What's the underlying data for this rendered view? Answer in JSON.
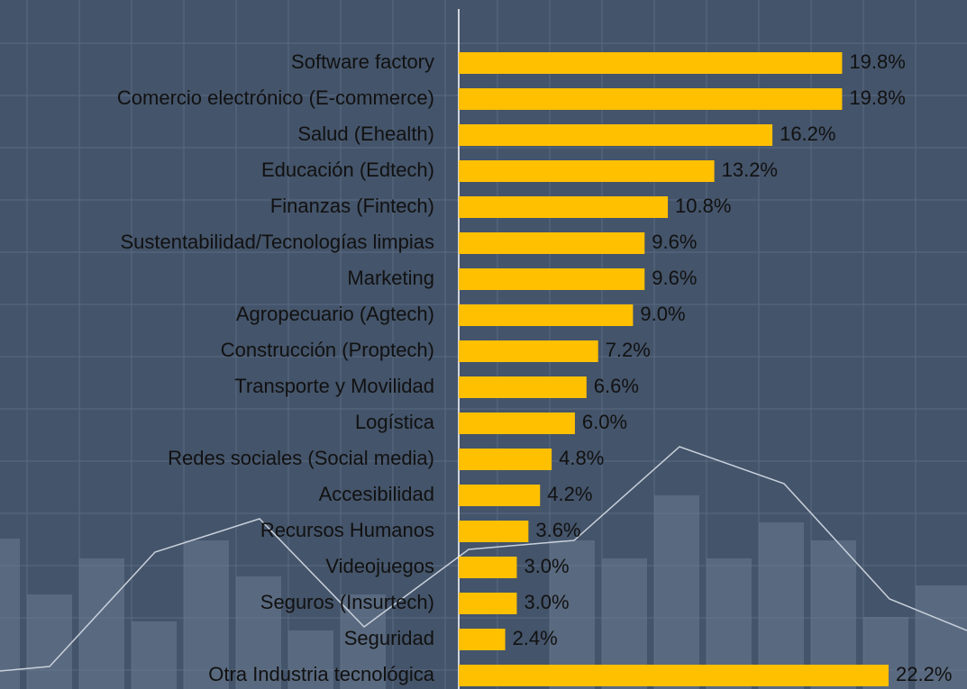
{
  "chart_data": {
    "type": "bar",
    "orientation": "horizontal",
    "color": "#ffc000",
    "categories": [
      "Software factory",
      "Comercio electrónico (E-commerce)",
      "Salud (Ehealth)",
      "Educación (Edtech)",
      "Finanzas (Fintech)",
      "Sustentabilidad/Tecnologías limpias",
      "Marketing",
      "Agropecuario (Agtech)",
      "Construcción (Proptech)",
      "Transporte y Movilidad",
      "Logística",
      "Redes sociales (Social media)",
      "Accesibilidad",
      "Recursos Humanos",
      "Videojuegos",
      "Seguros (Insurtech)",
      "Seguridad",
      "Otra Industria tecnológica"
    ],
    "values": [
      19.8,
      19.8,
      16.2,
      13.2,
      10.8,
      9.6,
      9.6,
      9.0,
      7.2,
      6.6,
      6.0,
      4.8,
      4.2,
      3.6,
      3.0,
      3.0,
      2.4,
      22.2
    ],
    "value_labels": [
      "19.8%",
      "19.8%",
      "16.2%",
      "13.2%",
      "10.8%",
      "9.6%",
      "9.6%",
      "9.0%",
      "7.2%",
      "6.6%",
      "6.0%",
      "4.8%",
      "4.2%",
      "3.6%",
      "3.0%",
      "3.0%",
      "2.4%",
      "22.2%"
    ]
  }
}
